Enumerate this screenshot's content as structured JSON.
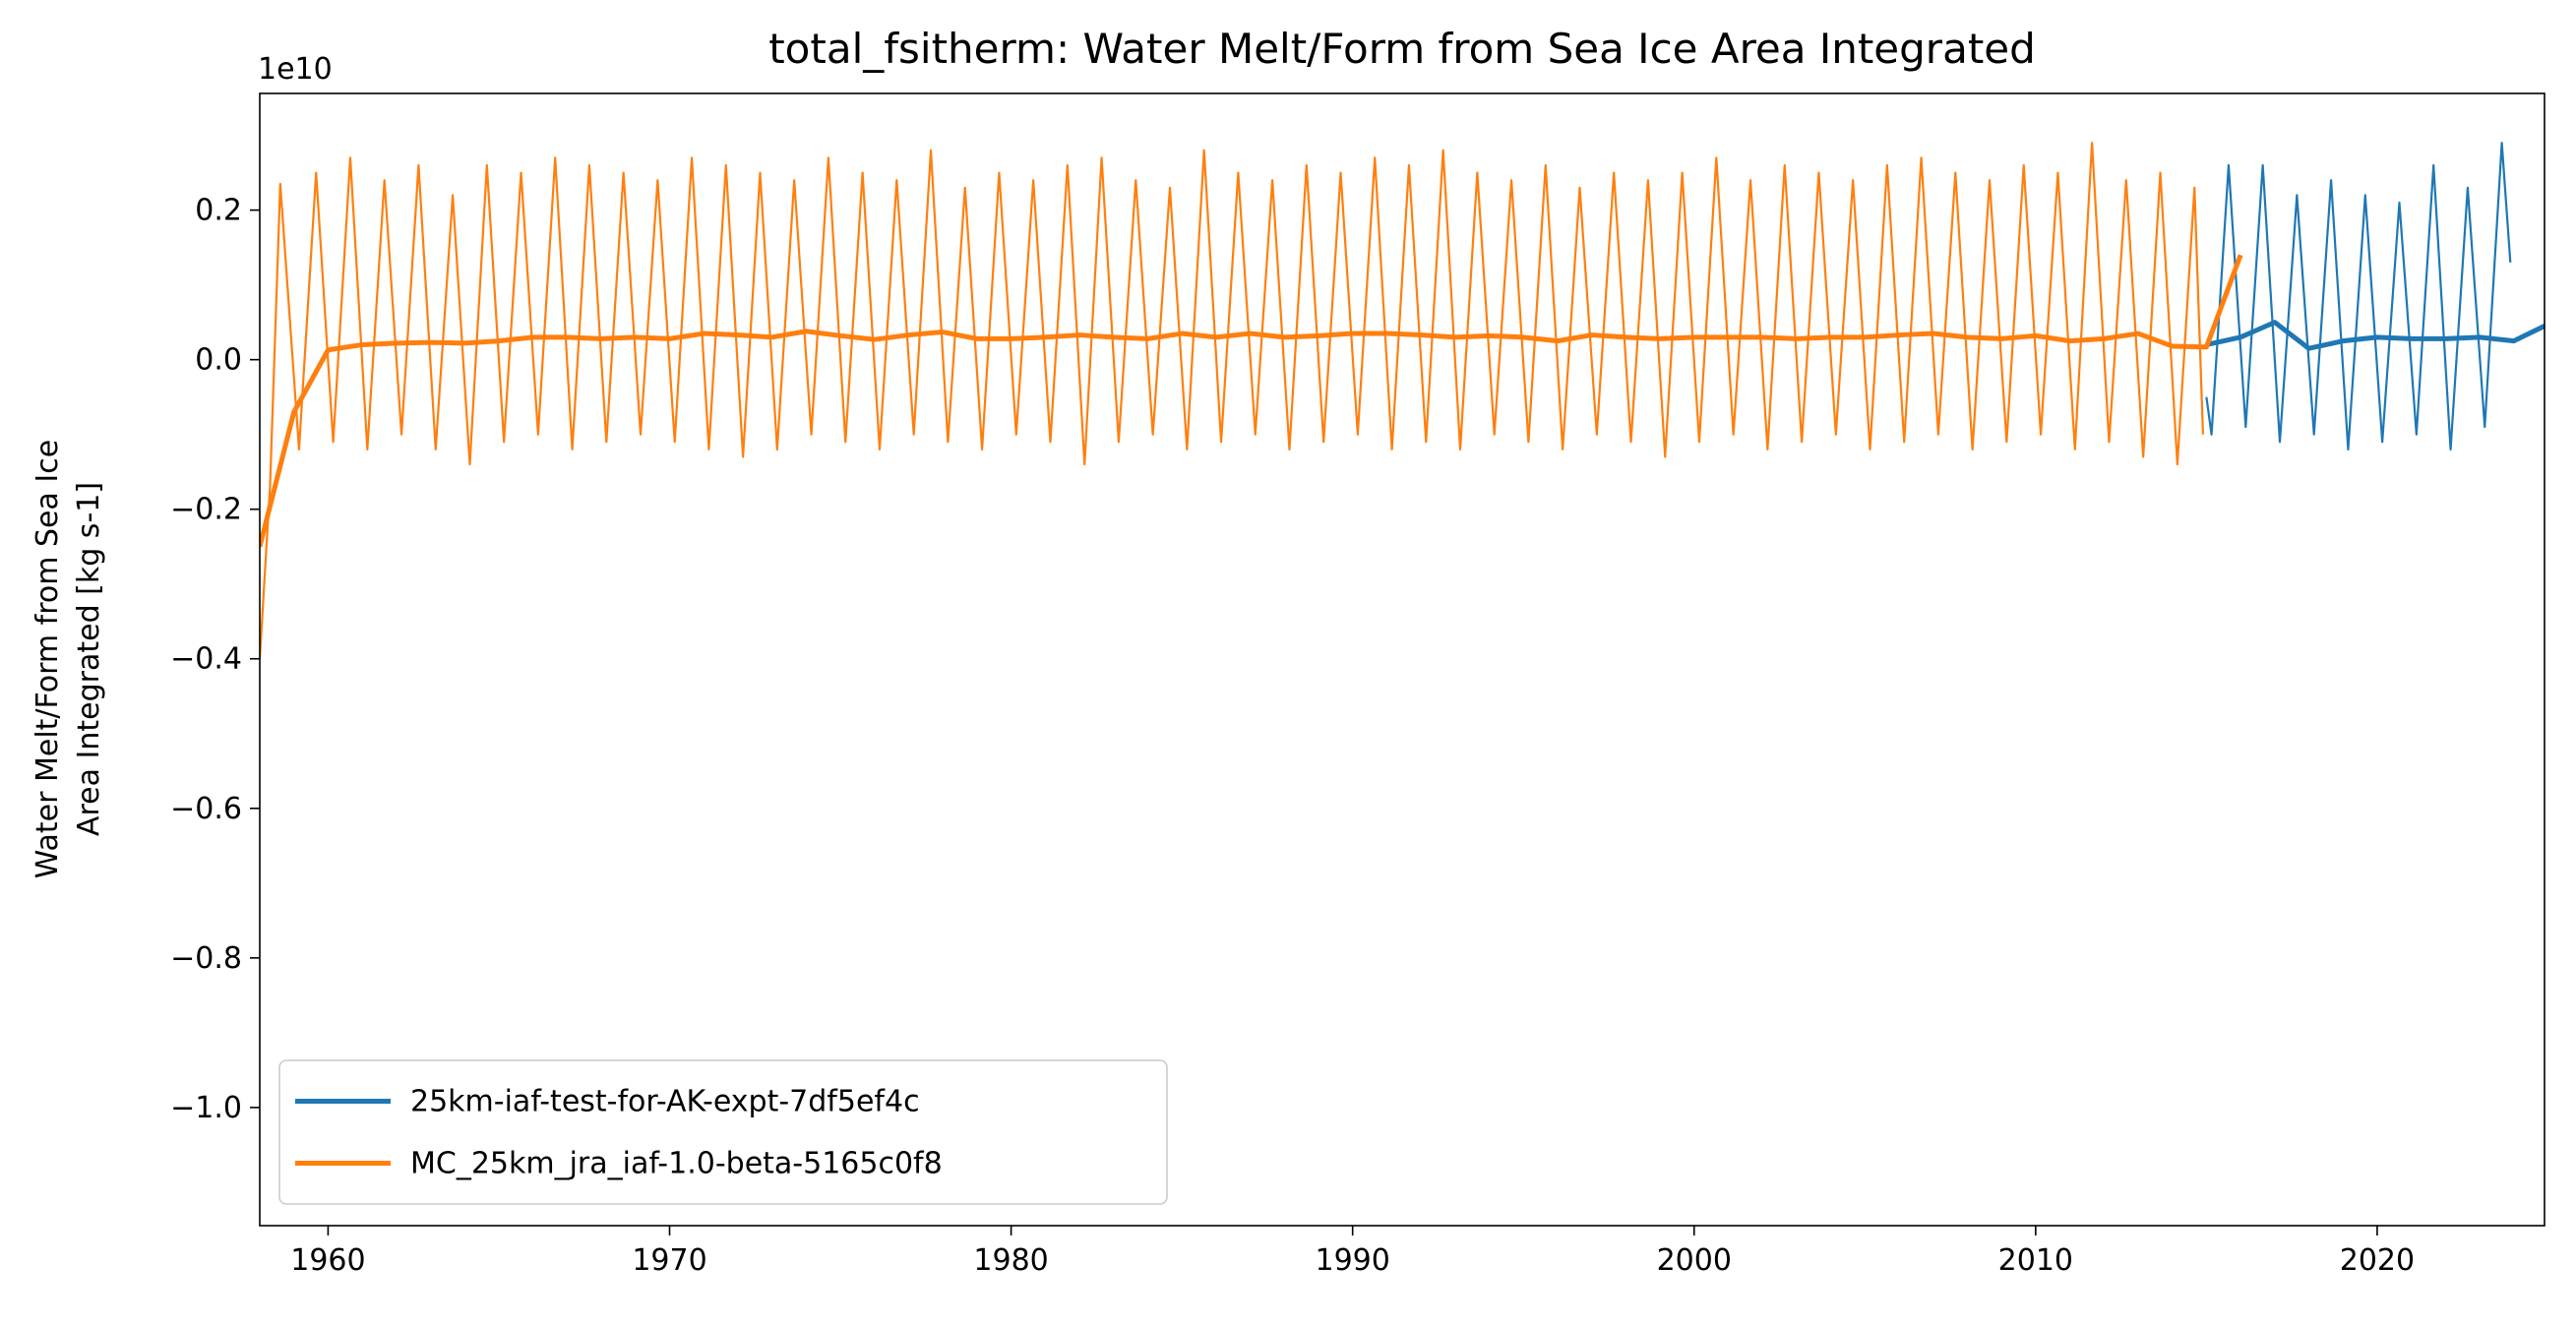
{
  "chart_data": {
    "type": "line",
    "title": "total_fsitherm: Water Melt/Form from Sea Ice Area Integrated",
    "y_label": [
      "Water Melt/Form from Sea Ice",
      "Area Integrated [kg s-1]"
    ],
    "y_offset_label": "1e10",
    "xlim": [
      1958,
      2024.9
    ],
    "xticks": [
      1960,
      1970,
      1980,
      1990,
      2000,
      2010,
      2020
    ],
    "ylim": [
      -1.158,
      0.356
    ],
    "yticks": [
      {
        "value": -1.0,
        "label": "−1.0"
      },
      {
        "value": -0.8,
        "label": "−0.8"
      },
      {
        "value": -0.6,
        "label": "−0.6"
      },
      {
        "value": -0.4,
        "label": "−0.4"
      },
      {
        "value": -0.2,
        "label": "−0.2"
      },
      {
        "value": 0,
        "label": "0.0"
      },
      0.2
    ],
    "grid": false,
    "legend": "lower left",
    "series": [
      {
        "name": "25km-iaf-test-for-AK-expt-7df5ef4c",
        "color": "#1f77b4",
        "x": [
          2015,
          2016,
          2017,
          2018,
          2019,
          2020,
          2021,
          2022,
          2023,
          2024,
          2024.9
        ],
        "values": [
          0.02,
          0.03,
          0.05,
          0.015,
          0.025,
          0.03,
          0.028,
          0.028,
          0.03,
          0.025,
          0.045
        ],
        "x_fine": [
          2015.0,
          2015.15,
          2015.65,
          2016.15,
          2016.65,
          2017.15,
          2017.65,
          2018.15,
          2018.65,
          2019.15,
          2019.65,
          2020.15,
          2020.65,
          2021.15,
          2021.65,
          2022.15,
          2022.65,
          2023.15,
          2023.65,
          2023.9
        ],
        "values_fine": [
          -0.05,
          -0.1,
          0.26,
          -0.09,
          0.26,
          -0.11,
          0.22,
          -0.1,
          0.24,
          -0.12,
          0.22,
          -0.11,
          0.21,
          -0.1,
          0.26,
          -0.12,
          0.23,
          -0.09,
          0.29,
          0.13
        ]
      },
      {
        "name": "MC_25km_jra_iaf-1.0-beta-5165c0f8",
        "color": "#ff7f0e",
        "x": [
          1958,
          1959,
          1960,
          1961,
          1962,
          1963,
          1964,
          1965,
          1966,
          1967,
          1968,
          1969,
          1970,
          1971,
          1972,
          1973,
          1974,
          1975,
          1976,
          1977,
          1978,
          1979,
          1980,
          1981,
          1982,
          1983,
          1984,
          1985,
          1986,
          1987,
          1988,
          1989,
          1990,
          1991,
          1992,
          1993,
          1994,
          1995,
          1996,
          1997,
          1998,
          1999,
          2000,
          2001,
          2002,
          2003,
          2004,
          2005,
          2006,
          2007,
          2008,
          2009,
          2010,
          2011,
          2012,
          2013,
          2014,
          2015,
          2016
        ],
        "values": [
          -0.25,
          -0.07,
          0.013,
          0.02,
          0.022,
          0.023,
          0.022,
          0.025,
          0.03,
          0.03,
          0.028,
          0.03,
          0.028,
          0.035,
          0.033,
          0.03,
          0.038,
          0.032,
          0.027,
          0.033,
          0.037,
          0.028,
          0.028,
          0.03,
          0.033,
          0.03,
          0.028,
          0.035,
          0.03,
          0.035,
          0.03,
          0.032,
          0.035,
          0.035,
          0.033,
          0.03,
          0.032,
          0.03,
          0.025,
          0.033,
          0.03,
          0.028,
          0.03,
          0.03,
          0.03,
          0.028,
          0.03,
          0.03,
          0.033,
          0.035,
          0.03,
          0.028,
          0.032,
          0.025,
          0.028,
          0.035,
          0.018,
          0.017,
          0.14
        ],
        "x_fine": [
          1958.0,
          1958.3,
          1958.6,
          1959.15,
          1959.65,
          1960.15,
          1960.65,
          1961.15,
          1961.65,
          1962.15,
          1962.65,
          1963.15,
          1963.65,
          1964.15,
          1964.65,
          1965.15,
          1965.65,
          1966.15,
          1966.65,
          1967.15,
          1967.65,
          1968.15,
          1968.65,
          1969.15,
          1969.65,
          1970.15,
          1970.65,
          1971.15,
          1971.65,
          1972.15,
          1972.65,
          1973.15,
          1973.65,
          1974.15,
          1974.65,
          1975.15,
          1975.65,
          1976.15,
          1976.65,
          1977.15,
          1977.65,
          1978.15,
          1978.65,
          1979.15,
          1979.65,
          1980.15,
          1980.65,
          1981.15,
          1981.65,
          1982.15,
          1982.65,
          1983.15,
          1983.65,
          1984.15,
          1984.65,
          1985.15,
          1985.65,
          1986.15,
          1986.65,
          1987.15,
          1987.65,
          1988.15,
          1988.65,
          1989.15,
          1989.65,
          1990.15,
          1990.65,
          1991.15,
          1991.65,
          1992.15,
          1992.65,
          1993.15,
          1993.65,
          1994.15,
          1994.65,
          1995.15,
          1995.65,
          1996.15,
          1996.65,
          1997.15,
          1997.65,
          1998.15,
          1998.65,
          1999.15,
          1999.65,
          2000.15,
          2000.65,
          2001.15,
          2001.65,
          2002.15,
          2002.65,
          2003.15,
          2003.65,
          2004.15,
          2004.65,
          2005.15,
          2005.65,
          2006.15,
          2006.65,
          2007.15,
          2007.65,
          2008.15,
          2008.65,
          2009.15,
          2009.65,
          2010.15,
          2010.65,
          2011.15,
          2011.65,
          2012.15,
          2012.65,
          2013.15,
          2013.65,
          2014.15,
          2014.65,
          2014.9
        ],
        "values_fine": [
          -0.4,
          -0.17,
          0.235,
          -0.12,
          0.25,
          -0.11,
          0.27,
          -0.12,
          0.24,
          -0.1,
          0.26,
          -0.12,
          0.22,
          -0.14,
          0.26,
          -0.11,
          0.25,
          -0.1,
          0.27,
          -0.12,
          0.26,
          -0.11,
          0.25,
          -0.1,
          0.24,
          -0.11,
          0.27,
          -0.12,
          0.26,
          -0.13,
          0.25,
          -0.12,
          0.24,
          -0.1,
          0.27,
          -0.11,
          0.25,
          -0.12,
          0.24,
          -0.1,
          0.28,
          -0.11,
          0.23,
          -0.12,
          0.25,
          -0.1,
          0.24,
          -0.11,
          0.26,
          -0.14,
          0.27,
          -0.11,
          0.24,
          -0.1,
          0.23,
          -0.12,
          0.28,
          -0.11,
          0.25,
          -0.1,
          0.24,
          -0.12,
          0.26,
          -0.11,
          0.25,
          -0.1,
          0.27,
          -0.12,
          0.26,
          -0.11,
          0.28,
          -0.12,
          0.25,
          -0.1,
          0.24,
          -0.11,
          0.26,
          -0.12,
          0.23,
          -0.1,
          0.25,
          -0.11,
          0.24,
          -0.13,
          0.25,
          -0.11,
          0.27,
          -0.1,
          0.24,
          -0.12,
          0.26,
          -0.11,
          0.25,
          -0.1,
          0.24,
          -0.12,
          0.26,
          -0.11,
          0.27,
          -0.1,
          0.25,
          -0.12,
          0.24,
          -0.11,
          0.26,
          -0.1,
          0.25,
          -0.12,
          0.29,
          -0.11,
          0.24,
          -0.13,
          0.25,
          -0.14,
          0.23,
          -0.1
        ]
      }
    ]
  }
}
